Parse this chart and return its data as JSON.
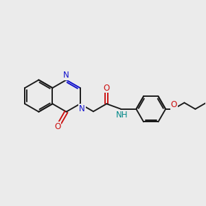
{
  "background_color": "#ebebeb",
  "bond_color": "#1a1a1a",
  "N_color": "#1010cc",
  "O_color": "#cc1010",
  "NH_color": "#008888",
  "figsize": [
    3.0,
    3.0
  ],
  "dpi": 100,
  "bond_lw": 1.4,
  "font_size": 8.5,
  "xlim": [
    0,
    10
  ],
  "ylim": [
    0,
    10
  ]
}
